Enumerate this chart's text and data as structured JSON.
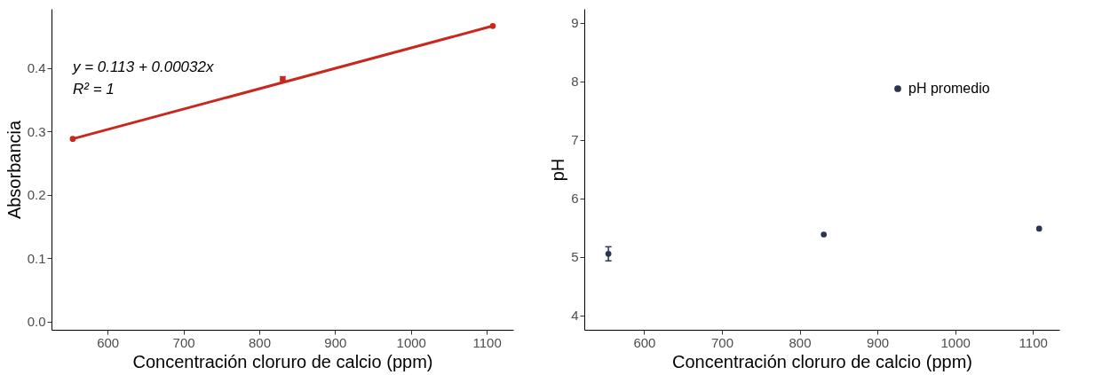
{
  "chart_data": [
    {
      "type": "scatter",
      "xlabel": "Concentración cloruro de calcio (ppm)",
      "ylabel": "Absorbancia",
      "annotations": [
        "y = 0.113 + 0.00032x",
        "R² = 1"
      ],
      "xlim": [
        526,
        1135
      ],
      "xticks": [
        600,
        700,
        800,
        900,
        1000,
        1100
      ],
      "ylim": [
        -0.013,
        0.493
      ],
      "yticks": [
        {
          "value": 0,
          "label": "0.0"
        },
        0.1,
        0.2,
        0.3,
        0.4
      ],
      "grid": false,
      "series": [
        {
          "type": "line",
          "color": "#c8281e",
          "x": [
            554,
            1108
          ],
          "values": [
            0.288,
            0.466
          ]
        },
        {
          "color": "#c8281e",
          "marker": "circle",
          "x": [
            554,
            831,
            1108
          ],
          "values": [
            0.288,
            0.382,
            0.466
          ],
          "errors": [
            null,
            0.004,
            null
          ]
        }
      ]
    },
    {
      "type": "scatter",
      "xlabel": "Concentración cloruro de calcio (ppm)",
      "ylabel": "pH",
      "xlim": [
        523,
        1134
      ],
      "xticks": [
        600,
        700,
        800,
        900,
        1000,
        1100
      ],
      "ylim": [
        3.75,
        9.24
      ],
      "yticks": [
        4,
        5,
        6,
        7,
        8,
        9
      ],
      "grid": false,
      "legend": "top right",
      "marker": "circle",
      "series": [
        {
          "name": "pH promedio",
          "color": "#2b3553",
          "x": [
            554,
            831,
            1108
          ],
          "values": [
            5.05,
            5.38,
            5.48
          ],
          "errors": [
            0.12,
            null,
            null
          ]
        }
      ]
    }
  ]
}
